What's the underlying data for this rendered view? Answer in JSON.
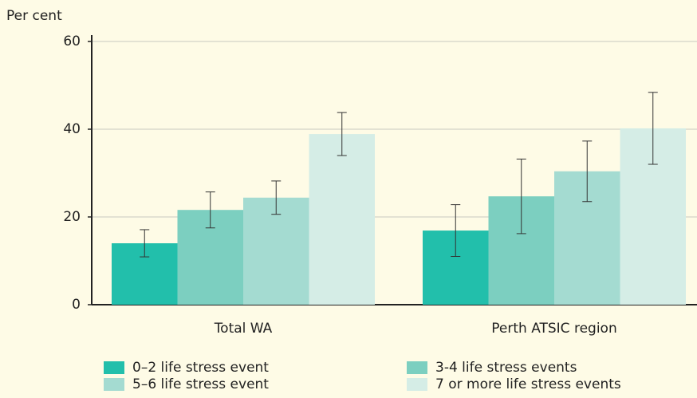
{
  "chart_data": {
    "type": "bar",
    "y_label": "Per cent",
    "categories": [
      "Total WA",
      "Perth ATSIC region"
    ],
    "series": [
      {
        "name": "0–2 life stress event",
        "color": "#22bfab",
        "values": [
          14.0,
          16.9
        ],
        "errors": [
          3.1,
          5.9
        ]
      },
      {
        "name": "3-4 life stress events",
        "color": "#7ccfc0",
        "values": [
          21.6,
          24.7
        ],
        "errors": [
          4.1,
          8.5
        ]
      },
      {
        "name": "5–6 life stress event",
        "color": "#a4dbd1",
        "values": [
          24.4,
          30.4
        ],
        "errors": [
          3.8,
          6.9
        ]
      },
      {
        "name": "7 or more life stress events",
        "color": "#d5ede6",
        "values": [
          38.9,
          40.2
        ],
        "errors": [
          4.9,
          8.2
        ]
      }
    ],
    "ylim": [
      0,
      60
    ],
    "yticks": [
      0,
      20,
      40,
      60
    ],
    "grid": true
  }
}
